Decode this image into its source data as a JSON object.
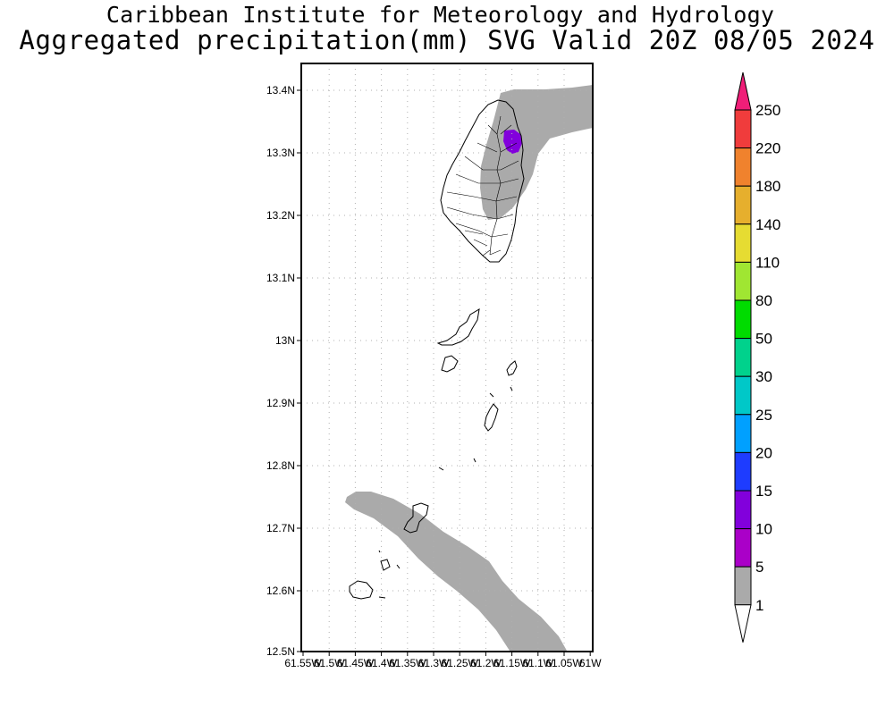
{
  "title": {
    "line1": "Caribbean Institute for Meteorology and Hydrology",
    "line2": "Aggregated precipitation(mm) SVG Valid 20Z 08/05 2024"
  },
  "map": {
    "lat_labels": [
      "13.4N",
      "13.3N",
      "13.2N",
      "13.1N",
      "13N",
      "12.9N",
      "12.8N",
      "12.7N",
      "12.6N",
      "12.5N"
    ],
    "lon_labels": [
      "61.55W",
      "61.5W",
      "61.45W",
      "61.4W",
      "61.35W",
      "61.3W",
      "61.25W",
      "61.2W",
      "61.15W",
      "61.1W",
      "61.05W",
      "61W"
    ],
    "lat_range": [
      12.5,
      13.44
    ],
    "lon_range": [
      -61.55,
      -61.0
    ],
    "grid": true
  },
  "legend": {
    "levels": [
      "250",
      "220",
      "180",
      "140",
      "110",
      "80",
      "50",
      "30",
      "25",
      "20",
      "15",
      "10",
      "5",
      "1"
    ],
    "colors": [
      "#f01e78",
      "#f03c3c",
      "#f0822d",
      "#e6af2d",
      "#e6dc32",
      "#a0e632",
      "#00dc00",
      "#00d28c",
      "#00c8c8",
      "#00a0ff",
      "#1e3cff",
      "#8200dc",
      "#aa00c8",
      "#aaaaaa"
    ]
  },
  "precip_colors": {
    "light": "#aaaaaa",
    "moderate": "#8200dc"
  }
}
